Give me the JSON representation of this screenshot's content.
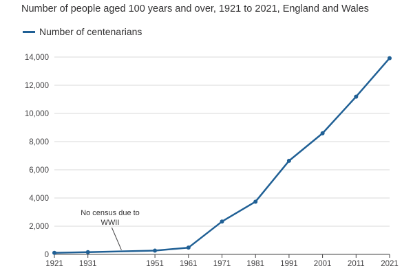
{
  "chart_data": {
    "type": "line",
    "title": "Number of people aged 100 years and over, 1921 to 2021, England and Wales",
    "xlabel": "",
    "ylabel": "",
    "x": [
      1921,
      1931,
      1951,
      1961,
      1971,
      1981,
      1991,
      2001,
      2011,
      2021
    ],
    "xlim": [
      1921,
      2021
    ],
    "ylim": [
      0,
      14000
    ],
    "yticks": [
      "0",
      "2,000",
      "4,000",
      "6,000",
      "8,000",
      "10,000",
      "12,000",
      "14,000"
    ],
    "xticks": [
      "1921",
      "1931",
      "1951",
      "1961",
      "1971",
      "1981",
      "1991",
      "2001",
      "2011",
      "2021"
    ],
    "grid": true,
    "legend_position": "top-left",
    "series": [
      {
        "name": "Number of centenarians",
        "color": "#206095",
        "values": [
          110,
          160,
          270,
          480,
          2330,
          3740,
          6640,
          8590,
          11190,
          13920
        ]
      }
    ],
    "annotation": {
      "line1": "No census due to",
      "line2": "WWII",
      "target_year": 1941
    }
  }
}
